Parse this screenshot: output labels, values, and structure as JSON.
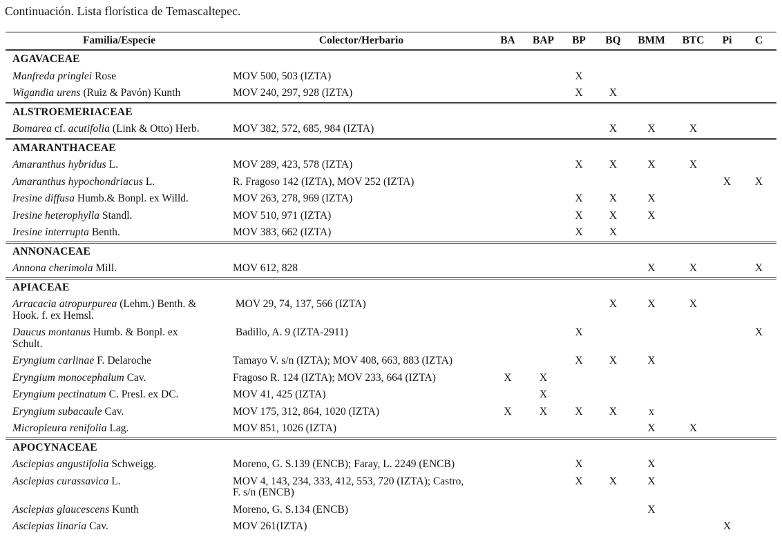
{
  "title": "Continuación. Lista florística de Temascaltepec.",
  "colors": {
    "text": "#151515",
    "background": "#ffffff",
    "rule": "#3a3a3a"
  },
  "table": {
    "columns": [
      "Familia/Especie",
      "Colector/Herbario",
      "BA",
      "BAP",
      "BP",
      "BQ",
      "BMM",
      "BTC",
      "Pi",
      "C"
    ],
    "mark_keys": [
      "BA",
      "BAP",
      "BP",
      "BQ",
      "BMM",
      "BTC",
      "Pi",
      "C"
    ],
    "sections": [
      {
        "family": "AGAVACEAE",
        "rows": [
          {
            "species": [
              {
                "t": "Manfreda pringlei",
                "i": true
              },
              {
                "t": " Rose",
                "i": false
              }
            ],
            "collector": "MOV 500, 503 (IZTA)",
            "marks": {
              "BP": "X"
            }
          },
          {
            "species": [
              {
                "t": "Wigandia urens",
                "i": true
              },
              {
                "t": " (Ruiz & Pavón) Kunth",
                "i": false
              }
            ],
            "collector": "MOV 240, 297, 928 (IZTA)",
            "marks": {
              "BP": "X",
              "BQ": "X"
            }
          }
        ]
      },
      {
        "family": "ALSTROEMERIACEAE",
        "rows": [
          {
            "species": [
              {
                "t": "Bomarea",
                "i": true
              },
              {
                "t": " cf. ",
                "i": false
              },
              {
                "t": "acutifolia",
                "i": true
              },
              {
                "t": " (Link & Otto) Herb.",
                "i": false
              }
            ],
            "collector": "MOV 382, 572, 685, 984 (IZTA)",
            "marks": {
              "BQ": "X",
              "BMM": "X",
              "BTC": "X"
            }
          }
        ]
      },
      {
        "family": "AMARANTHACEAE",
        "rows": [
          {
            "species": [
              {
                "t": "Amaranthus hybridus",
                "i": true
              },
              {
                "t": " L.",
                "i": false
              }
            ],
            "collector": "MOV 289, 423, 578 (IZTA)",
            "marks": {
              "BP": "X",
              "BQ": "X",
              "BMM": "X",
              "BTC": "X"
            }
          },
          {
            "species": [
              {
                "t": "Amaranthus hypochondriacus",
                "i": true
              },
              {
                "t": " L.",
                "i": false
              }
            ],
            "collector": "R. Fragoso 142 (IZTA), MOV 252 (IZTA)",
            "marks": {
              "Pi": "X",
              "C": "X"
            }
          },
          {
            "species": [
              {
                "t": "Iresine diffusa",
                "i": true
              },
              {
                "t": " Humb.& Bonpl. ex Willd.",
                "i": false
              }
            ],
            "collector": "MOV 263, 278, 969 (IZTA)",
            "marks": {
              "BP": "X",
              "BQ": "X",
              "BMM": "X"
            }
          },
          {
            "species": [
              {
                "t": "Iresine heterophylla",
                "i": true
              },
              {
                "t": " Standl.",
                "i": false
              }
            ],
            "collector": "MOV 510, 971 (IZTA)",
            "marks": {
              "BP": "X",
              "BQ": "X",
              "BMM": "X"
            }
          },
          {
            "species": [
              {
                "t": "Iresine interrupta",
                "i": true
              },
              {
                "t": " Benth.",
                "i": false
              }
            ],
            "collector": "MOV 383, 662 (IZTA)",
            "marks": {
              "BP": "X",
              "BQ": "X"
            }
          }
        ]
      },
      {
        "family": "ANNONACEAE",
        "rows": [
          {
            "species": [
              {
                "t": "Annona cherimola",
                "i": true
              },
              {
                "t": " Mill.",
                "i": false
              }
            ],
            "collector": "MOV 612, 828",
            "marks": {
              "BMM": "X",
              "BTC": "X",
              "C": "X"
            }
          }
        ]
      },
      {
        "family": "APIACEAE",
        "rows": [
          {
            "species": [
              {
                "t": "Arracacia atropurpurea",
                "i": true
              },
              {
                "t": " (Lehm.) Benth. &\nHook. f. ex Hemsl.",
                "i": false
              }
            ],
            "collector": " MOV 29, 74, 137, 566 (IZTA)",
            "marks": {
              "BQ": "X",
              "BMM": "X",
              "BTC": "X"
            }
          },
          {
            "species": [
              {
                "t": "Daucus montanus",
                "i": true
              },
              {
                "t": " Humb. & Bonpl. ex\nSchult.",
                "i": false
              }
            ],
            "collector": " Badillo, A. 9 (IZTA-2911)",
            "marks": {
              "BP": "X",
              "C": "X"
            }
          },
          {
            "species": [
              {
                "t": "Eryngium carlinae",
                "i": true
              },
              {
                "t": " F. Delaroche",
                "i": false
              }
            ],
            "collector": "Tamayo V. s/n (IZTA); MOV 408, 663, 883 (IZTA)",
            "marks": {
              "BP": "X",
              "BQ": "X",
              "BMM": "X"
            }
          },
          {
            "species": [
              {
                "t": "Eryngium monocephalum",
                "i": true
              },
              {
                "t": " Cav.",
                "i": false
              }
            ],
            "collector": "Fragoso R. 124 (IZTA); MOV 233, 664 (IZTA)",
            "marks": {
              "BA": "X",
              "BAP": "X"
            }
          },
          {
            "species": [
              {
                "t": "Eryngium pectinatum",
                "i": true
              },
              {
                "t": " C. Presl. ex DC.",
                "i": false
              }
            ],
            "collector": "MOV 41, 425 (IZTA)",
            "marks": {
              "BAP": "X"
            }
          },
          {
            "species": [
              {
                "t": "Eryngium subacaule",
                "i": true
              },
              {
                "t": " Cav.",
                "i": false
              }
            ],
            "collector": "MOV 175, 312, 864, 1020 (IZTA)",
            "marks": {
              "BA": "X",
              "BAP": "X",
              "BP": "X",
              "BQ": "X",
              "BMM": "x"
            }
          },
          {
            "species": [
              {
                "t": "Micropleura renifolia",
                "i": true
              },
              {
                "t": " Lag.",
                "i": false
              }
            ],
            "collector": "MOV 851, 1026 (IZTA)",
            "marks": {
              "BMM": "X",
              "BTC": "X"
            }
          }
        ]
      },
      {
        "family": "APOCYNACEAE",
        "rows": [
          {
            "species": [
              {
                "t": "Asclepias angustifolia",
                "i": true
              },
              {
                "t": " Schweigg.",
                "i": false
              }
            ],
            "collector": "Moreno, G. S.139 (ENCB); Faray, L. 2249 (ENCB)",
            "marks": {
              "BP": "X",
              "BMM": "X"
            }
          },
          {
            "species": [
              {
                "t": "Asclepias curassavica",
                "i": true
              },
              {
                "t": " L.",
                "i": false
              }
            ],
            "collector": "MOV 4, 143, 234, 333, 412, 553, 720 (IZTA); Castro,\nF. s/n (ENCB)",
            "marks": {
              "BP": "X",
              "BQ": "X",
              "BMM": "X"
            }
          },
          {
            "species": [
              {
                "t": "Asclepias glaucescens",
                "i": true
              },
              {
                "t": " Kunth",
                "i": false
              }
            ],
            "collector": "Moreno, G. S.134 (ENCB)",
            "marks": {
              "BMM": "X"
            }
          },
          {
            "species": [
              {
                "t": "Asclepias linaria",
                "i": true
              },
              {
                "t": " Cav.",
                "i": false
              }
            ],
            "collector": "MOV 261(IZTA)",
            "marks": {
              "Pi": "X"
            }
          }
        ]
      }
    ]
  }
}
